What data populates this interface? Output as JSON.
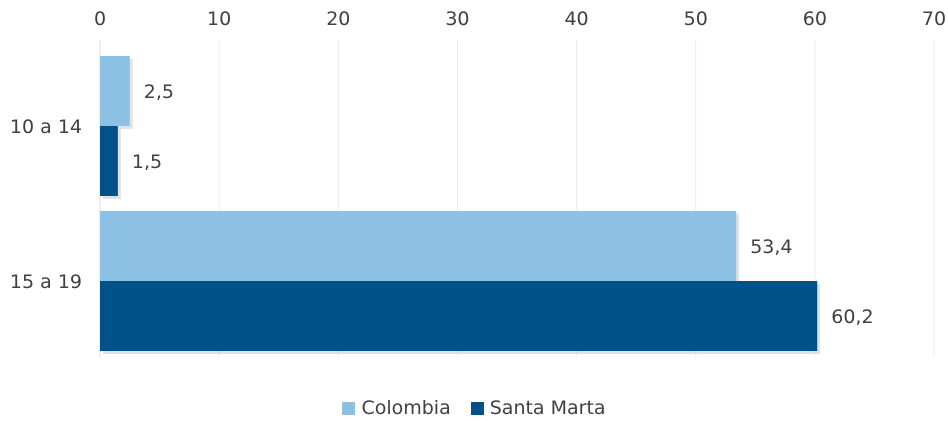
{
  "chart_data": {
    "type": "bar",
    "orientation": "horizontal",
    "categories": [
      "10 a 14",
      "15 a 19"
    ],
    "series": [
      {
        "name": "Colombia",
        "values": [
          2.5,
          53.4
        ],
        "labels": [
          "2,5",
          "53,4"
        ],
        "color": "#8cc1e3"
      },
      {
        "name": "Santa Marta",
        "values": [
          1.5,
          60.2
        ],
        "labels": [
          "1,5",
          "60,2"
        ],
        "color": "#005289"
      }
    ],
    "xlim": [
      0,
      70
    ],
    "xticks": [
      0,
      10,
      20,
      30,
      40,
      50,
      60,
      70
    ],
    "xaxis_position": "top",
    "grid": true,
    "legend_position": "bottom",
    "title": "",
    "xlabel": "",
    "ylabel": ""
  }
}
